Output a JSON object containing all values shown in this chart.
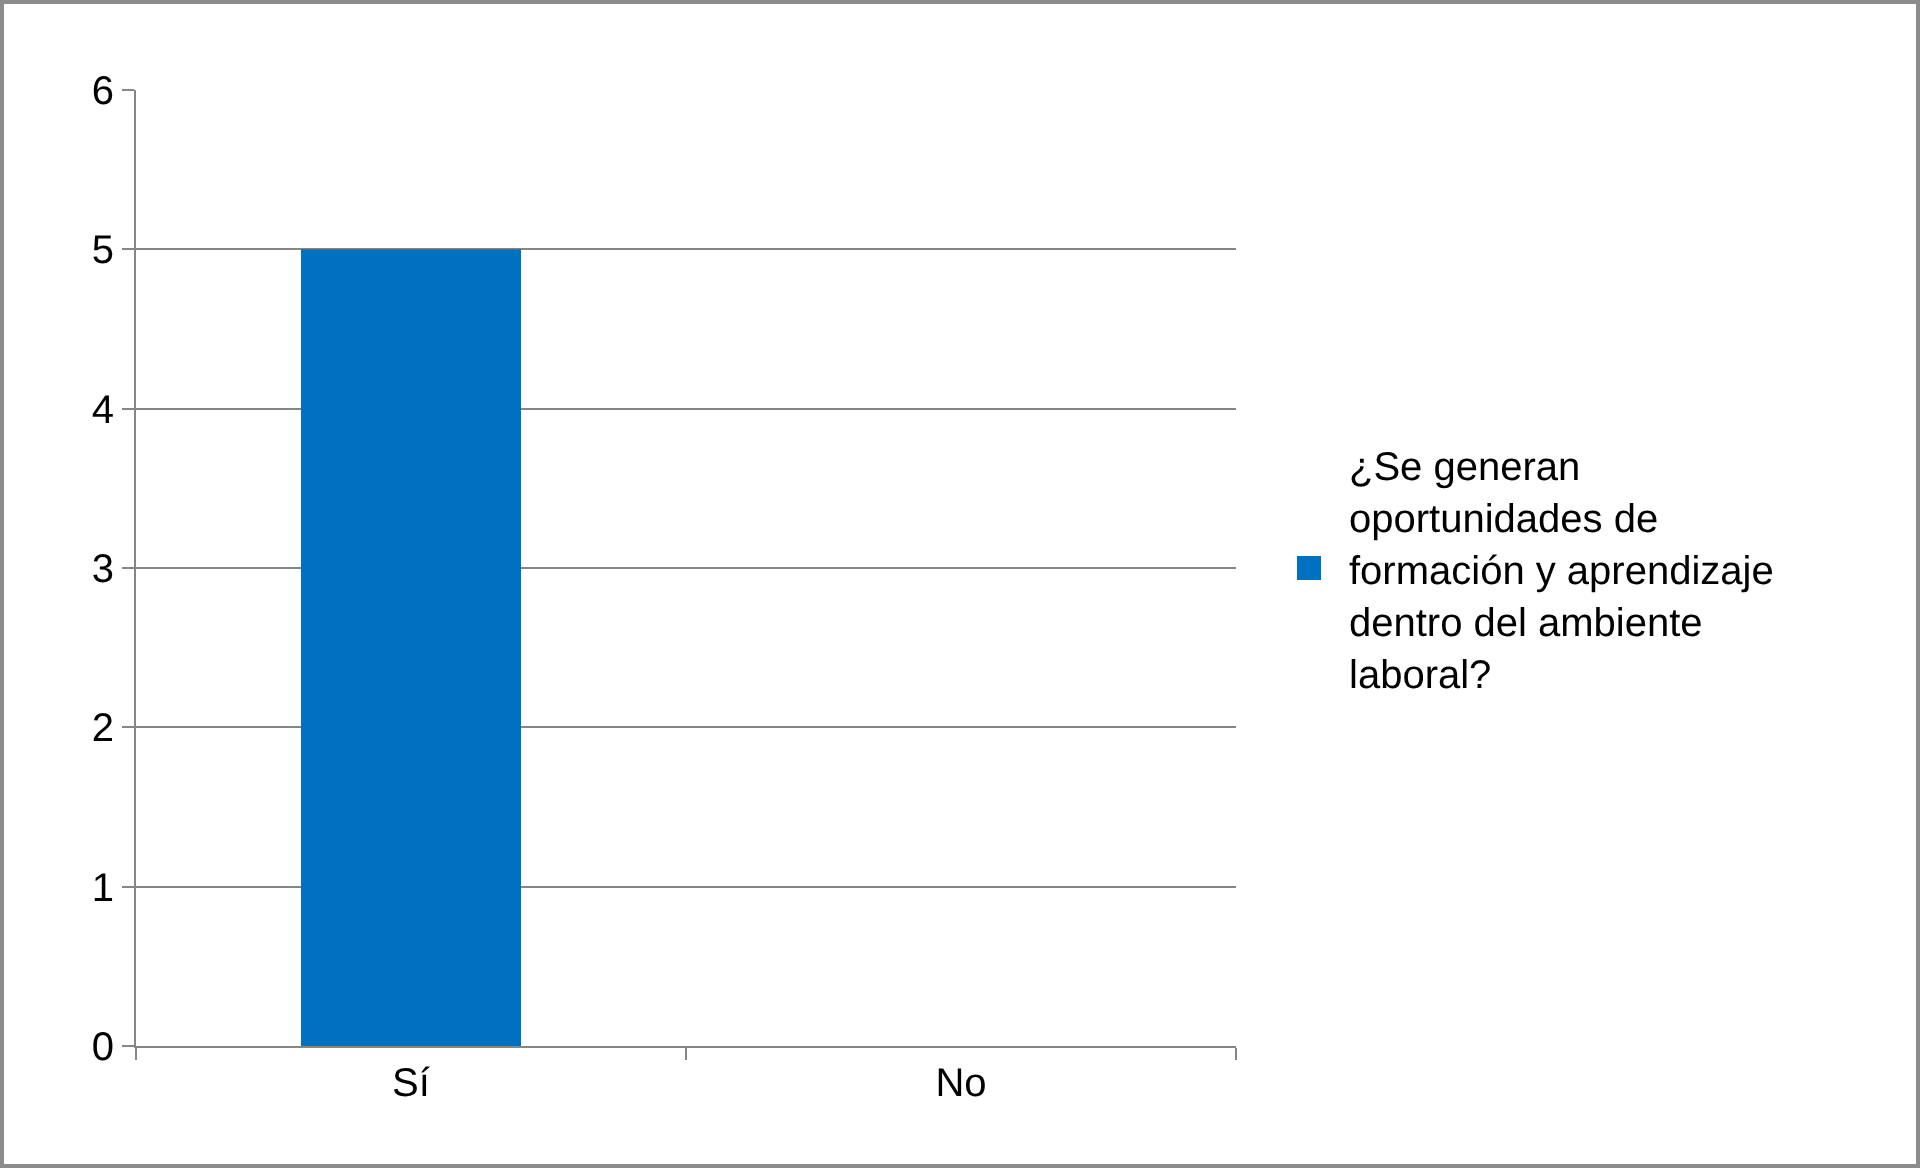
{
  "chart_data": {
    "type": "bar",
    "categories": [
      "Sí",
      "No"
    ],
    "series": [
      {
        "name": "¿Se generan oportunidades de formación y aprendizaje dentro del ambiente laboral?",
        "color": "#0070c0",
        "values": [
          5,
          0
        ]
      }
    ],
    "ylim": [
      0,
      6
    ],
    "yticks": [
      0,
      1,
      2,
      3,
      4,
      5,
      6
    ],
    "grid": "y",
    "legend": "right"
  }
}
